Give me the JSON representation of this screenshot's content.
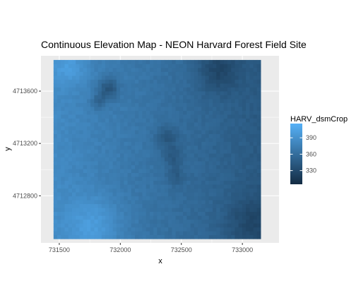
{
  "chart_data": {
    "type": "heatmap",
    "title": "Continuous Elevation Map - NEON Harvard Forest Field Site",
    "xlabel": "x",
    "ylabel": "y",
    "x_ticks": [
      731500,
      732000,
      732500,
      733000
    ],
    "y_ticks": [
      4712800,
      4713200,
      4713600
    ],
    "x_tick_labels": [
      "731500",
      "732000",
      "732500",
      "733000"
    ],
    "y_tick_labels": [
      "4712800",
      "4713200",
      "4713600"
    ],
    "xlim": [
      731350,
      733300
    ],
    "ylim": [
      4712440,
      4713870
    ],
    "raster_extent": {
      "x": [
        731453,
        733150
      ],
      "y": [
        4712471,
        4713838
      ]
    },
    "legend": {
      "title": "HARV_dsmCrop",
      "ticks": [
        330,
        360,
        390
      ],
      "tick_labels": [
        "330",
        "360",
        "390"
      ],
      "range": [
        305,
        416
      ],
      "low_color": "#132B43",
      "high_color": "#56B1F7",
      "position": "right"
    },
    "grid": true,
    "panel_background": "#EBEBEB",
    "surface": {
      "base_west": 384,
      "base_east": 343,
      "features": [
        {
          "kind": "high",
          "x": 731580,
          "y": 4713780,
          "radius": 140,
          "delta": 18
        },
        {
          "kind": "high",
          "x": 731780,
          "y": 4712570,
          "radius": 220,
          "delta": 22
        },
        {
          "kind": "low",
          "x": 731900,
          "y": 4713620,
          "radius": 85,
          "delta": -34
        },
        {
          "kind": "low",
          "x": 731820,
          "y": 4713520,
          "radius": 60,
          "delta": -20
        },
        {
          "kind": "low",
          "x": 732380,
          "y": 4713250,
          "radius": 90,
          "delta": -20
        },
        {
          "kind": "low",
          "x": 732430,
          "y": 4713100,
          "radius": 80,
          "delta": -18
        },
        {
          "kind": "low",
          "x": 732450,
          "y": 4712950,
          "radius": 70,
          "delta": -15
        },
        {
          "kind": "low",
          "x": 732800,
          "y": 4713760,
          "radius": 170,
          "delta": -24
        },
        {
          "kind": "low",
          "x": 733080,
          "y": 4712600,
          "radius": 200,
          "delta": -18
        }
      ]
    }
  }
}
